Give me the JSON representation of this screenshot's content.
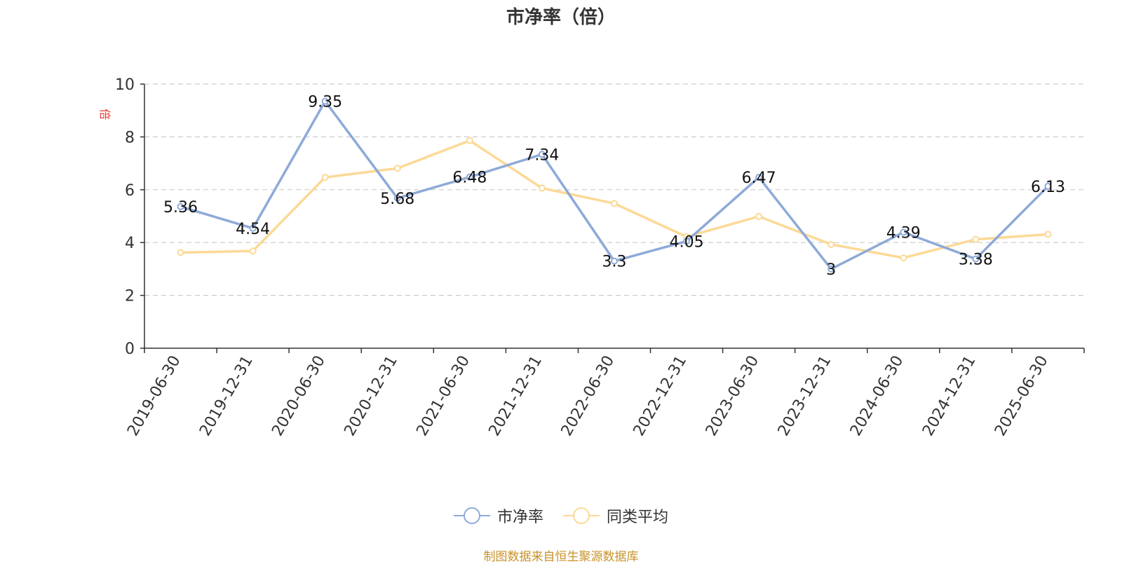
{
  "chart_data": {
    "type": "line",
    "title": "市净率（倍）",
    "ylabel": "倍",
    "ylim": [
      0,
      10
    ],
    "yticks": [
      "0",
      "2",
      "4",
      "6",
      "8",
      "10"
    ],
    "grid": true,
    "legend_position": "bottom",
    "categories": [
      "2019-06-30",
      "2019-12-31",
      "2020-06-30",
      "2020-12-31",
      "2021-06-30",
      "2021-12-31",
      "2022-06-30",
      "2022-12-31",
      "2023-06-30",
      "2023-12-31",
      "2024-06-30",
      "2024-12-31",
      "2025-06-30"
    ],
    "series": [
      {
        "name": "市净率",
        "color": "#8eaad8",
        "values": [
          5.36,
          4.54,
          9.35,
          5.68,
          6.48,
          7.34,
          3.3,
          4.05,
          6.47,
          3,
          4.39,
          3.38,
          6.13
        ],
        "labels": [
          "5.36",
          "4.54",
          "9.35",
          "5.68",
          "6.48",
          "7.34",
          "3.3",
          "4.05",
          "6.47",
          "3",
          "4.39",
          "3.38",
          "6.13"
        ]
      },
      {
        "name": "同类平均",
        "color": "#fcd996",
        "values": [
          3.62,
          3.68,
          6.47,
          6.81,
          7.86,
          6.06,
          5.48,
          4.22,
          4.99,
          3.93,
          3.42,
          4.12,
          4.31
        ]
      }
    ]
  },
  "source_text": "制图数据来自恒生聚源数据库"
}
